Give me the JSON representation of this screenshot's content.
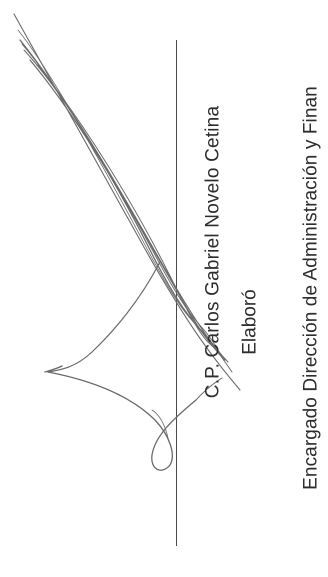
{
  "signature_block": {
    "name": "C.P. Carlos Gabriel Novelo Cetina",
    "role": "Elaboró",
    "position": "Encargado Dirección de Administración y Finan"
  }
}
